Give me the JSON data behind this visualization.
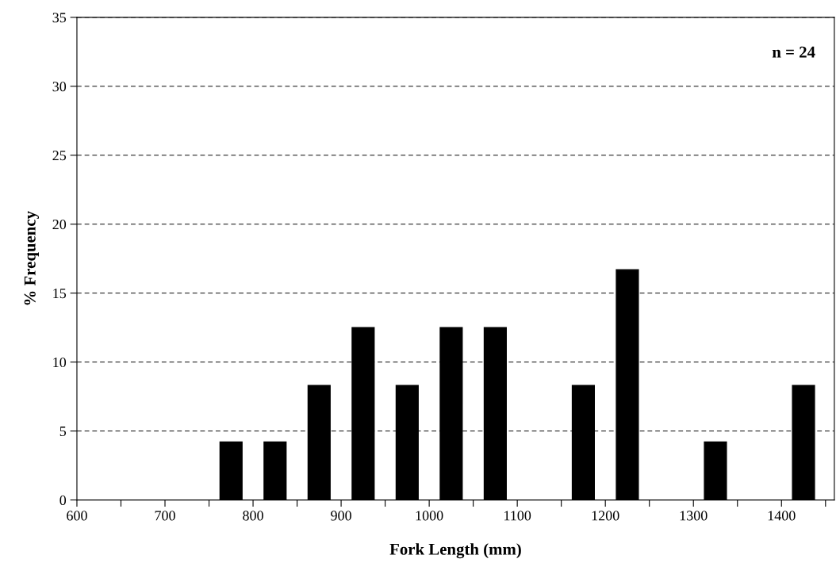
{
  "chart_data": {
    "type": "bar",
    "xlabel": "Fork Length (mm)",
    "ylabel": "% Frequency",
    "x": [
      775,
      825,
      875,
      925,
      975,
      1025,
      1075,
      1175,
      1225,
      1325,
      1425
    ],
    "values": [
      4.2,
      4.2,
      8.3,
      12.5,
      8.3,
      12.5,
      12.5,
      8.3,
      16.7,
      4.2,
      8.3
    ],
    "color": "#000000",
    "xlim": [
      600,
      1460
    ],
    "xticks": [
      600,
      {
        "value": 650,
        "label": null
      },
      700,
      {
        "value": 750,
        "label": null
      },
      800,
      {
        "value": 850,
        "label": null
      },
      900,
      {
        "value": 950,
        "label": null
      },
      1000,
      {
        "value": 1050,
        "label": null
      },
      1100,
      {
        "value": 1150,
        "label": null
      },
      1200,
      {
        "value": 1250,
        "label": null
      },
      1300,
      {
        "value": 1350,
        "label": null
      },
      1400,
      {
        "value": 1450,
        "label": null
      }
    ],
    "ylim": [
      0,
      35
    ],
    "yticks": [
      0,
      5,
      10,
      15,
      20,
      25,
      30,
      35
    ],
    "grid": "y",
    "line_style": "dashed",
    "annotations": [
      "n = 24"
    ]
  }
}
